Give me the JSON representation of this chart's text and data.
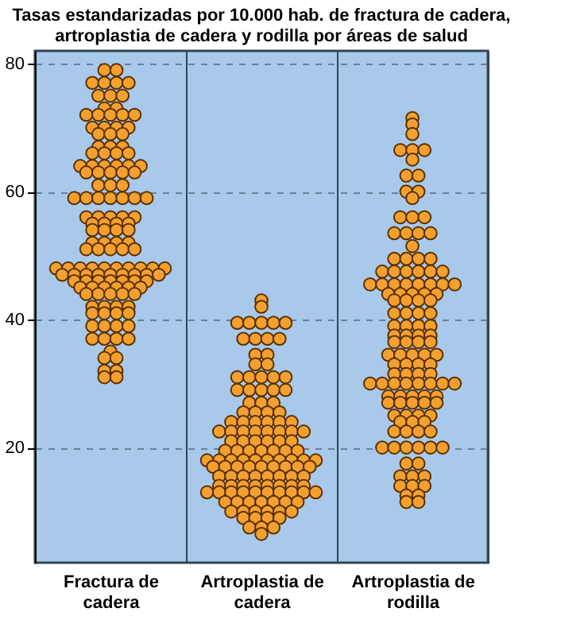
{
  "chart_data": {
    "type": "scatter",
    "title": "Tasas estandarizadas por 10.000 hab. de fractura de cadera, artroplastia de cadera y rodilla por áreas de salud",
    "categories": [
      "Fractura de cadera",
      "Artroplastia de cadera",
      "Artroplastia de rodilla"
    ],
    "ylim": [
      2,
      82
    ],
    "yticks": [
      20,
      40,
      60,
      80
    ],
    "grid": "y",
    "marker": "circle",
    "legend": false,
    "series": [
      {
        "color": "#f4a030",
        "x": [
          "Fractura de cadera",
          "Fractura de cadera",
          "Fractura de cadera",
          "Fractura de cadera",
          "Fractura de cadera",
          "Fractura de cadera",
          "Fractura de cadera",
          "Fractura de cadera",
          "Fractura de cadera",
          "Fractura de cadera",
          "Fractura de cadera",
          "Fractura de cadera",
          "Fractura de cadera",
          "Fractura de cadera",
          "Fractura de cadera",
          "Fractura de cadera",
          "Fractura de cadera",
          "Fractura de cadera",
          "Fractura de cadera",
          "Fractura de cadera",
          "Fractura de cadera",
          "Fractura de cadera",
          "Fractura de cadera",
          "Fractura de cadera",
          "Fractura de cadera",
          "Fractura de cadera",
          "Fractura de cadera",
          "Fractura de cadera",
          "Fractura de cadera",
          "Fractura de cadera",
          "Fractura de cadera",
          "Fractura de cadera",
          "Fractura de cadera",
          "Fractura de cadera",
          "Fractura de cadera",
          "Fractura de cadera",
          "Fractura de cadera",
          "Fractura de cadera",
          "Fractura de cadera",
          "Fractura de cadera",
          "Fractura de cadera",
          "Fractura de cadera",
          "Fractura de cadera",
          "Fractura de cadera",
          "Fractura de cadera",
          "Fractura de cadera",
          "Fractura de cadera",
          "Fractura de cadera",
          "Fractura de cadera",
          "Fractura de cadera",
          "Fractura de cadera",
          "Fractura de cadera",
          "Fractura de cadera",
          "Fractura de cadera",
          "Fractura de cadera",
          "Fractura de cadera",
          "Fractura de cadera",
          "Fractura de cadera",
          "Fractura de cadera",
          "Fractura de cadera",
          "Fractura de cadera",
          "Fractura de cadera",
          "Fractura de cadera",
          "Fractura de cadera",
          "Fractura de cadera",
          "Fractura de cadera",
          "Fractura de cadera",
          "Fractura de cadera",
          "Fractura de cadera",
          "Fractura de cadera",
          "Fractura de cadera",
          "Fractura de cadera",
          "Fractura de cadera",
          "Fractura de cadera",
          "Fractura de cadera",
          "Fractura de cadera",
          "Fractura de cadera",
          "Fractura de cadera",
          "Fractura de cadera",
          "Fractura de cadera",
          "Fractura de cadera",
          "Fractura de cadera",
          "Fractura de cadera",
          "Fractura de cadera",
          "Fractura de cadera",
          "Fractura de cadera",
          "Fractura de cadera",
          "Fractura de cadera",
          "Fractura de cadera",
          "Fractura de cadera",
          "Fractura de cadera",
          "Fractura de cadera",
          "Fractura de cadera",
          "Fractura de cadera",
          "Fractura de cadera",
          "Fractura de cadera",
          "Fractura de cadera",
          "Fractura de cadera",
          "Fractura de cadera",
          "Fractura de cadera",
          "Fractura de cadera",
          "Fractura de cadera",
          "Fractura de cadera",
          "Fractura de cadera",
          "Fractura de cadera",
          "Fractura de cadera",
          "Fractura de cadera",
          "Fractura de cadera",
          "Fractura de cadera",
          "Fractura de cadera",
          "Fractura de cadera",
          "Fractura de cadera",
          "Fractura de cadera",
          "Fractura de cadera",
          "Fractura de cadera",
          "Fractura de cadera",
          "Fractura de cadera",
          "Fractura de cadera",
          "Fractura de cadera",
          "Fractura de cadera",
          "Fractura de cadera",
          "Fractura de cadera",
          "Fractura de cadera",
          "Fractura de cadera",
          "Fractura de cadera",
          "Fractura de cadera",
          "Fractura de cadera",
          "Fractura de cadera",
          "Fractura de cadera",
          "Fractura de cadera",
          "Fractura de cadera",
          "Fractura de cadera",
          "Fractura de cadera"
        ],
        "values": [
          79,
          79,
          77,
          77,
          77,
          77,
          75,
          75,
          75,
          73,
          73,
          72,
          72,
          72,
          72,
          72,
          70,
          70,
          70,
          70,
          69,
          69,
          69,
          67,
          67,
          67,
          66,
          66,
          66,
          66,
          64,
          64,
          64,
          64,
          64,
          64,
          63,
          63,
          63,
          63,
          63,
          61,
          61,
          61,
          59,
          59,
          59,
          59,
          59,
          59,
          59,
          56,
          56,
          56,
          56,
          56,
          55,
          55,
          55,
          55,
          54,
          54,
          54,
          54,
          52,
          52,
          52,
          52,
          51,
          51,
          51,
          51,
          51,
          48,
          48,
          48,
          48,
          48,
          48,
          48,
          48,
          48,
          48,
          47,
          47,
          47,
          47,
          47,
          47,
          47,
          47,
          47,
          46,
          46,
          46,
          46,
          46,
          46,
          46,
          45,
          45,
          45,
          45,
          45,
          45,
          44,
          44,
          44,
          44,
          44,
          42,
          42,
          42,
          42,
          41,
          41,
          41,
          41,
          39,
          39,
          39,
          39,
          37,
          37,
          37,
          37,
          35,
          34,
          34,
          32,
          32,
          31,
          31
        ]
      },
      {
        "color": "#f4a030",
        "x": [
          "Artroplastia de cadera",
          "Artroplastia de cadera",
          "Artroplastia de cadera",
          "Artroplastia de cadera",
          "Artroplastia de cadera",
          "Artroplastia de cadera",
          "Artroplastia de cadera",
          "Artroplastia de cadera",
          "Artroplastia de cadera",
          "Artroplastia de cadera",
          "Artroplastia de cadera",
          "Artroplastia de cadera",
          "Artroplastia de cadera",
          "Artroplastia de cadera",
          "Artroplastia de cadera",
          "Artroplastia de cadera",
          "Artroplastia de cadera",
          "Artroplastia de cadera",
          "Artroplastia de cadera",
          "Artroplastia de cadera",
          "Artroplastia de cadera",
          "Artroplastia de cadera",
          "Artroplastia de cadera",
          "Artroplastia de cadera",
          "Artroplastia de cadera",
          "Artroplastia de cadera",
          "Artroplastia de cadera",
          "Artroplastia de cadera",
          "Artroplastia de cadera",
          "Artroplastia de cadera",
          "Artroplastia de cadera",
          "Artroplastia de cadera",
          "Artroplastia de cadera",
          "Artroplastia de cadera",
          "Artroplastia de cadera",
          "Artroplastia de cadera",
          "Artroplastia de cadera",
          "Artroplastia de cadera",
          "Artroplastia de cadera",
          "Artroplastia de cadera",
          "Artroplastia de cadera",
          "Artroplastia de cadera",
          "Artroplastia de cadera",
          "Artroplastia de cadera",
          "Artroplastia de cadera",
          "Artroplastia de cadera",
          "Artroplastia de cadera",
          "Artroplastia de cadera",
          "Artroplastia de cadera",
          "Artroplastia de cadera",
          "Artroplastia de cadera",
          "Artroplastia de cadera",
          "Artroplastia de cadera",
          "Artroplastia de cadera",
          "Artroplastia de cadera",
          "Artroplastia de cadera",
          "Artroplastia de cadera",
          "Artroplastia de cadera",
          "Artroplastia de cadera",
          "Artroplastia de cadera",
          "Artroplastia de cadera",
          "Artroplastia de cadera",
          "Artroplastia de cadera",
          "Artroplastia de cadera",
          "Artroplastia de cadera",
          "Artroplastia de cadera",
          "Artroplastia de cadera",
          "Artroplastia de cadera",
          "Artroplastia de cadera",
          "Artroplastia de cadera",
          "Artroplastia de cadera",
          "Artroplastia de cadera",
          "Artroplastia de cadera",
          "Artroplastia de cadera",
          "Artroplastia de cadera",
          "Artroplastia de cadera",
          "Artroplastia de cadera",
          "Artroplastia de cadera",
          "Artroplastia de cadera",
          "Artroplastia de cadera",
          "Artroplastia de cadera",
          "Artroplastia de cadera",
          "Artroplastia de cadera",
          "Artroplastia de cadera",
          "Artroplastia de cadera",
          "Artroplastia de cadera",
          "Artroplastia de cadera",
          "Artroplastia de cadera",
          "Artroplastia de cadera",
          "Artroplastia de cadera",
          "Artroplastia de cadera",
          "Artroplastia de cadera",
          "Artroplastia de cadera",
          "Artroplastia de cadera",
          "Artroplastia de cadera",
          "Artroplastia de cadera",
          "Artroplastia de cadera",
          "Artroplastia de cadera",
          "Artroplastia de cadera",
          "Artroplastia de cadera",
          "Artroplastia de cadera",
          "Artroplastia de cadera",
          "Artroplastia de cadera",
          "Artroplastia de cadera",
          "Artroplastia de cadera",
          "Artroplastia de cadera",
          "Artroplastia de cadera",
          "Artroplastia de cadera",
          "Artroplastia de cadera",
          "Artroplastia de cadera",
          "Artroplastia de cadera",
          "Artroplastia de cadera",
          "Artroplastia de cadera",
          "Artroplastia de cadera",
          "Artroplastia de cadera",
          "Artroplastia de cadera",
          "Artroplastia de cadera",
          "Artroplastia de cadera",
          "Artroplastia de cadera",
          "Artroplastia de cadera",
          "Artroplastia de cadera",
          "Artroplastia de cadera",
          "Artroplastia de cadera",
          "Artroplastia de cadera",
          "Artroplastia de cadera"
        ],
        "values": [
          43,
          42,
          39.5,
          39.5,
          39.5,
          39.5,
          39.5,
          37,
          37,
          37,
          37,
          34.5,
          34.5,
          33,
          33,
          31,
          31,
          31,
          31,
          31,
          29,
          29,
          29,
          29,
          29,
          27,
          27,
          27,
          25.5,
          25.5,
          25.5,
          25.5,
          24,
          24,
          24,
          24,
          24,
          24,
          22.5,
          22.5,
          22.5,
          22.5,
          22.5,
          22.5,
          22.5,
          22.5,
          21,
          21,
          21,
          21,
          21,
          21,
          19.5,
          19.5,
          19.5,
          19.5,
          19.5,
          19.5,
          19.5,
          18,
          18,
          18,
          18,
          18,
          18,
          18,
          18,
          18,
          18,
          17,
          17,
          17,
          17,
          17,
          17,
          17,
          17,
          17,
          15.5,
          15.5,
          15.5,
          15.5,
          15.5,
          15.5,
          15.5,
          15.5,
          14,
          14,
          14,
          14,
          14,
          14,
          14,
          14,
          13,
          13,
          13,
          13,
          13,
          13,
          13,
          13,
          13,
          13,
          11.5,
          11.5,
          11.5,
          11.5,
          11.5,
          11.5,
          11.5,
          10,
          10,
          10,
          10,
          10,
          10,
          9,
          9,
          9,
          9,
          7.5,
          7.5,
          7.5,
          6.5
        ]
      },
      {
        "color": "#f4a030",
        "x": [
          "Artroplastia de rodilla",
          "Artroplastia de rodilla",
          "Artroplastia de rodilla",
          "Artroplastia de rodilla",
          "Artroplastia de rodilla",
          "Artroplastia de rodilla",
          "Artroplastia de rodilla",
          "Artroplastia de rodilla",
          "Artroplastia de rodilla",
          "Artroplastia de rodilla",
          "Artroplastia de rodilla",
          "Artroplastia de rodilla",
          "Artroplastia de rodilla",
          "Artroplastia de rodilla",
          "Artroplastia de rodilla",
          "Artroplastia de rodilla",
          "Artroplastia de rodilla",
          "Artroplastia de rodilla",
          "Artroplastia de rodilla",
          "Artroplastia de rodilla",
          "Artroplastia de rodilla",
          "Artroplastia de rodilla",
          "Artroplastia de rodilla",
          "Artroplastia de rodilla",
          "Artroplastia de rodilla",
          "Artroplastia de rodilla",
          "Artroplastia de rodilla",
          "Artroplastia de rodilla",
          "Artroplastia de rodilla",
          "Artroplastia de rodilla",
          "Artroplastia de rodilla",
          "Artroplastia de rodilla",
          "Artroplastia de rodilla",
          "Artroplastia de rodilla",
          "Artroplastia de rodilla",
          "Artroplastia de rodilla",
          "Artroplastia de rodilla",
          "Artroplastia de rodilla",
          "Artroplastia de rodilla",
          "Artroplastia de rodilla",
          "Artroplastia de rodilla",
          "Artroplastia de rodilla",
          "Artroplastia de rodilla",
          "Artroplastia de rodilla",
          "Artroplastia de rodilla",
          "Artroplastia de rodilla",
          "Artroplastia de rodilla",
          "Artroplastia de rodilla",
          "Artroplastia de rodilla",
          "Artroplastia de rodilla",
          "Artroplastia de rodilla",
          "Artroplastia de rodilla",
          "Artroplastia de rodilla",
          "Artroplastia de rodilla",
          "Artroplastia de rodilla",
          "Artroplastia de rodilla",
          "Artroplastia de rodilla",
          "Artroplastia de rodilla",
          "Artroplastia de rodilla",
          "Artroplastia de rodilla",
          "Artroplastia de rodilla",
          "Artroplastia de rodilla",
          "Artroplastia de rodilla",
          "Artroplastia de rodilla",
          "Artroplastia de rodilla",
          "Artroplastia de rodilla",
          "Artroplastia de rodilla",
          "Artroplastia de rodilla",
          "Artroplastia de rodilla",
          "Artroplastia de rodilla",
          "Artroplastia de rodilla",
          "Artroplastia de rodilla",
          "Artroplastia de rodilla",
          "Artroplastia de rodilla",
          "Artroplastia de rodilla",
          "Artroplastia de rodilla",
          "Artroplastia de rodilla",
          "Artroplastia de rodilla",
          "Artroplastia de rodilla",
          "Artroplastia de rodilla",
          "Artroplastia de rodilla",
          "Artroplastia de rodilla",
          "Artroplastia de rodilla",
          "Artroplastia de rodilla",
          "Artroplastia de rodilla",
          "Artroplastia de rodilla",
          "Artroplastia de rodilla",
          "Artroplastia de rodilla",
          "Artroplastia de rodilla",
          "Artroplastia de rodilla",
          "Artroplastia de rodilla",
          "Artroplastia de rodilla",
          "Artroplastia de rodilla",
          "Artroplastia de rodilla",
          "Artroplastia de rodilla",
          "Artroplastia de rodilla",
          "Artroplastia de rodilla",
          "Artroplastia de rodilla",
          "Artroplastia de rodilla",
          "Artroplastia de rodilla",
          "Artroplastia de rodilla",
          "Artroplastia de rodilla",
          "Artroplastia de rodilla",
          "Artroplastia de rodilla",
          "Artroplastia de rodilla",
          "Artroplastia de rodilla",
          "Artroplastia de rodilla",
          "Artroplastia de rodilla",
          "Artroplastia de rodilla",
          "Artroplastia de rodilla",
          "Artroplastia de rodilla",
          "Artroplastia de rodilla",
          "Artroplastia de rodilla",
          "Artroplastia de rodilla",
          "Artroplastia de rodilla",
          "Artroplastia de rodilla",
          "Artroplastia de rodilla",
          "Artroplastia de rodilla",
          "Artroplastia de rodilla",
          "Artroplastia de rodilla",
          "Artroplastia de rodilla",
          "Artroplastia de rodilla",
          "Artroplastia de rodilla"
        ],
        "values": [
          71.5,
          70.5,
          69,
          66.5,
          66.5,
          66.5,
          65,
          62.5,
          62.5,
          60,
          60,
          59,
          56,
          56,
          56,
          53.5,
          53.5,
          53.5,
          53.5,
          51.5,
          49.5,
          49.5,
          49.5,
          49.5,
          47.5,
          47.5,
          47.5,
          47.5,
          47.5,
          47.5,
          45.5,
          45.5,
          45.5,
          45.5,
          45.5,
          45.5,
          45.5,
          45.5,
          44,
          44,
          44,
          44,
          44,
          43,
          43,
          43,
          43,
          41,
          41,
          41,
          41,
          39,
          39,
          39,
          39,
          37.5,
          37.5,
          37.5,
          37.5,
          36.5,
          36.5,
          36.5,
          36.5,
          34.5,
          34.5,
          34.5,
          34.5,
          34.5,
          33,
          33,
          33,
          33,
          31.5,
          31.5,
          31.5,
          31.5,
          30,
          30,
          30,
          30,
          30,
          30,
          30,
          30,
          28,
          28,
          28,
          28,
          28,
          27,
          27,
          27,
          27,
          27,
          25,
          25,
          25,
          25,
          24,
          24,
          24,
          22.5,
          22.5,
          22.5,
          22.5,
          20,
          20,
          20,
          20,
          20,
          20,
          17.5,
          17.5,
          15.5,
          15.5,
          15.5,
          14,
          14,
          14,
          12.5,
          12.5,
          11.5,
          11.5
        ]
      }
    ]
  }
}
